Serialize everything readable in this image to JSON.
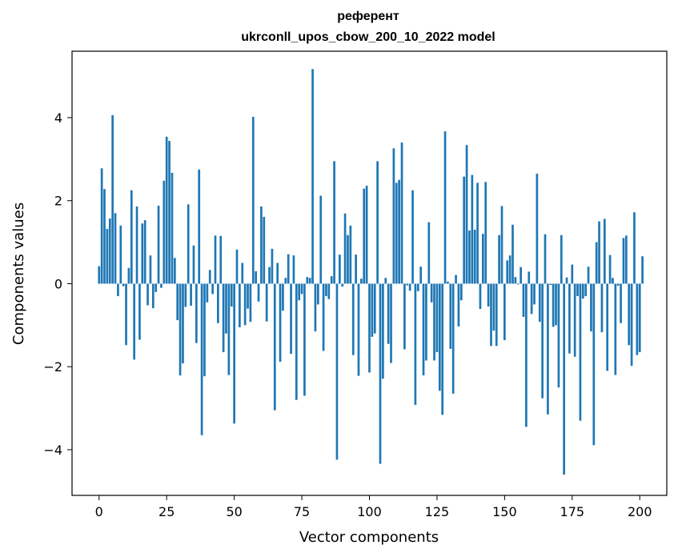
{
  "chart_data": {
    "type": "bar",
    "title_line1": "референт",
    "title_line2": "ukrconll_upos_cbow_200_10_2022 model",
    "xlabel": "Vector components",
    "ylabel": "Components values",
    "xlim": [
      -10,
      210
    ],
    "ylim": [
      -5.1,
      5.6
    ],
    "xticks": [
      0,
      25,
      50,
      75,
      100,
      125,
      150,
      175,
      200
    ],
    "yticks": [
      -4,
      -2,
      0,
      2,
      4
    ],
    "ytick_labels": [
      "−4",
      "−2",
      "0",
      "2",
      "4"
    ],
    "bar_color": "#1f77b4",
    "grid": false,
    "values": [
      0.42,
      2.78,
      2.28,
      1.32,
      1.57,
      4.06,
      1.7,
      -0.3,
      1.4,
      -0.06,
      -1.48,
      0.38,
      2.25,
      -1.83,
      1.86,
      -1.35,
      1.45,
      1.53,
      -0.52,
      0.68,
      -0.59,
      -0.2,
      1.88,
      -0.1,
      2.48,
      3.54,
      3.44,
      2.67,
      0.62,
      -0.88,
      -2.21,
      -1.92,
      -0.56,
      1.91,
      -0.53,
      0.92,
      -1.43,
      2.75,
      -3.65,
      -2.23,
      -0.45,
      0.33,
      -0.25,
      1.16,
      -0.95,
      1.15,
      -1.65,
      -1.2,
      -2.2,
      -0.55,
      -3.37,
      0.82,
      -1.05,
      0.5,
      -1.0,
      -0.6,
      -0.92,
      4.02,
      0.3,
      -0.43,
      1.86,
      1.61,
      -0.91,
      0.4,
      0.84,
      -3.05,
      0.5,
      -1.88,
      -0.65,
      0.14,
      0.71,
      -1.69,
      0.68,
      -2.8,
      -0.4,
      -0.25,
      -2.7,
      0.16,
      0.14,
      5.17,
      -1.15,
      -0.5,
      2.12,
      -1.62,
      -0.3,
      -0.37,
      0.18,
      2.95,
      -4.24,
      0.7,
      -0.07,
      1.69,
      1.17,
      1.4,
      -1.72,
      0.7,
      -2.22,
      0.12,
      2.29,
      2.36,
      -2.14,
      -1.28,
      -1.2,
      2.95,
      -4.34,
      -2.29,
      0.14,
      -1.45,
      -1.91,
      3.26,
      2.43,
      2.5,
      3.4,
      -1.58,
      -0.04,
      -0.17,
      2.25,
      -2.92,
      -0.18,
      0.41,
      -2.21,
      -1.85,
      1.48,
      -0.45,
      -1.85,
      -1.65,
      -2.58,
      -3.16,
      3.67,
      0.05,
      -1.57,
      -2.65,
      0.21,
      -1.03,
      -0.4,
      2.58,
      3.34,
      1.28,
      2.62,
      1.3,
      2.43,
      -0.61,
      1.2,
      2.45,
      -0.55,
      -1.5,
      -1.13,
      -1.5,
      1.17,
      1.87,
      -1.36,
      0.56,
      0.68,
      1.42,
      0.16,
      -0.02,
      0.4,
      -0.8,
      -3.45,
      0.29,
      -0.73,
      -0.5,
      2.65,
      -0.92,
      -2.76,
      1.19,
      -3.15,
      -0.03,
      -1.04,
      -1.0,
      -2.5,
      1.17,
      -4.6,
      0.15,
      -1.68,
      0.46,
      -1.76,
      -0.3,
      -3.3,
      -0.36,
      -0.3,
      0.41,
      -1.15,
      -3.89,
      1.0,
      1.5,
      -1.17,
      1.56,
      -2.1,
      0.69,
      0.14,
      -2.2,
      -0.05,
      -0.95,
      1.1,
      1.16,
      -1.48,
      -1.98,
      1.72,
      -1.72,
      -1.65,
      0.66
    ]
  }
}
